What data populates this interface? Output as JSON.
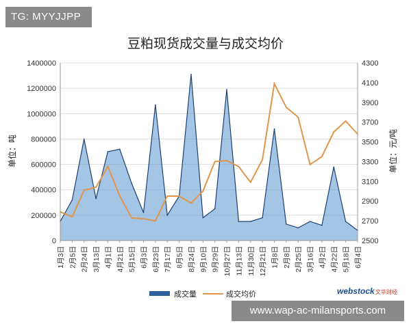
{
  "watermark_tag": "TG: MYYJJPP",
  "watermark_url": "www.wap-ac-milansports.com",
  "logo": {
    "brand": "webstock",
    "sub": "文华财经"
  },
  "colors": {
    "volume_fill": "#5b95cf",
    "volume_line": "#1c3f73",
    "price_line": "#e0954a"
  },
  "chart_data": {
    "type": "area+line",
    "title": "豆粕现货成交量与成交均价",
    "ylabel_left": "单位：吨",
    "ylabel_right": "单位：元/吨",
    "ylim_left": [
      0,
      1400000
    ],
    "ylim_right": [
      2500,
      4300
    ],
    "yticks_left": [
      "0",
      "200000",
      "400000",
      "600000",
      "800000",
      "1000000",
      "1200000",
      "1400000"
    ],
    "yticks_right": [
      "2500",
      "2700",
      "2900",
      "3100",
      "3300",
      "3500",
      "3700",
      "3900",
      "4100",
      "4300"
    ],
    "categories": [
      "1月3日",
      "2月5日",
      "2月24日",
      "3月13日",
      "4月1日",
      "4月21日",
      "5月15日",
      "6月3日",
      "6月23日",
      "7月17日",
      "8月5日",
      "8月24日",
      "9月10日",
      "9月29日",
      "10月27日",
      "11月13日",
      "11月30日",
      "12月21日",
      "1月8日",
      "2月8日",
      "2月25日",
      "3月16日",
      "4月2日",
      "4月22日",
      "5月18日",
      "6月4日"
    ],
    "legend": [
      "成交量",
      "成交均价"
    ],
    "series": [
      {
        "name": "成交量",
        "values": [
          150000,
          320000,
          800000,
          330000,
          700000,
          720000,
          450000,
          220000,
          1070000,
          200000,
          350000,
          1310000,
          180000,
          250000,
          1190000,
          150000,
          150000,
          180000,
          880000,
          130000,
          100000,
          150000,
          120000,
          580000,
          150000,
          80000
        ]
      },
      {
        "name": "成交均价",
        "values": [
          2790,
          2740,
          3010,
          3040,
          3250,
          2950,
          2730,
          2720,
          2700,
          2950,
          2950,
          2880,
          3000,
          3300,
          3310,
          3250,
          3090,
          3320,
          4090,
          3850,
          3750,
          3270,
          3350,
          3600,
          3710,
          3580
        ]
      }
    ]
  }
}
